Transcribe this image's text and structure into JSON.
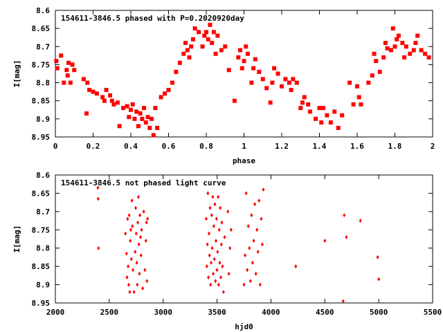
{
  "chart_data": [
    {
      "type": "scatter",
      "title": "154611-3846.5 phased with P=0.2020920day",
      "xlabel": "phase",
      "ylabel": "I[mag]",
      "xlim": [
        0,
        2
      ],
      "ylim": [
        8.95,
        8.6
      ],
      "y_inverted": true,
      "xticks": [
        "0",
        "0.2",
        "0.4",
        "0.6",
        "0.8",
        "1",
        "1.2",
        "1.4",
        "1.6",
        "1.8",
        "2"
      ],
      "yticks": [
        "8.6",
        "8.65",
        "8.7",
        "8.75",
        "8.8",
        "8.85",
        "8.9",
        "8.95"
      ],
      "marker": "square",
      "color": "#ff0000",
      "series": [
        {
          "x": [
            0.005,
            0.01,
            0.03,
            0.045,
            0.06,
            0.065,
            0.07,
            0.08,
            0.09,
            0.1,
            0.15,
            0.165,
            0.17,
            0.18,
            0.2,
            0.22,
            0.25,
            0.26,
            0.27,
            0.29,
            0.3,
            0.31,
            0.33,
            0.34,
            0.36,
            0.38,
            0.39,
            0.4,
            0.41,
            0.42,
            0.43,
            0.44,
            0.45,
            0.46,
            0.47,
            0.48,
            0.49,
            0.5,
            0.51,
            0.52,
            0.53,
            0.54,
            0.56,
            0.58,
            0.6,
            0.62,
            0.64,
            0.66,
            0.68,
            0.69,
            0.7,
            0.71,
            0.72,
            0.73,
            0.74,
            0.76,
            0.78,
            0.79,
            0.8,
            0.81,
            0.82,
            0.83,
            0.84,
            0.85,
            0.86,
            0.88,
            0.9,
            0.92,
            0.95,
            0.97,
            0.98,
            0.99,
            1.0,
            1.01,
            1.02,
            1.04,
            1.05,
            1.06,
            1.08,
            1.1,
            1.12,
            1.14,
            1.15,
            1.16,
            1.18,
            1.2,
            1.22,
            1.24,
            1.25,
            1.26,
            1.28,
            1.3,
            1.31,
            1.32,
            1.34,
            1.35,
            1.38,
            1.4,
            1.41,
            1.42,
            1.44,
            1.46,
            1.48,
            1.5,
            1.52,
            1.56,
            1.58,
            1.6,
            1.61,
            1.62,
            1.66,
            1.68,
            1.69,
            1.7,
            1.72,
            1.74,
            1.75,
            1.76,
            1.78,
            1.79,
            1.8,
            1.81,
            1.82,
            1.84,
            1.85,
            1.86,
            1.88,
            1.9,
            1.91,
            1.92,
            1.94,
            1.96,
            1.98
          ],
          "y": [
            8.74,
            8.76,
            8.725,
            8.8,
            8.765,
            8.78,
            8.745,
            8.8,
            8.75,
            8.765,
            8.79,
            8.885,
            8.8,
            8.82,
            8.825,
            8.83,
            8.84,
            8.85,
            8.82,
            8.835,
            8.85,
            8.86,
            8.855,
            8.92,
            8.87,
            8.865,
            8.895,
            8.875,
            8.86,
            8.9,
            8.88,
            8.92,
            8.885,
            8.9,
            8.87,
            8.91,
            8.895,
            8.925,
            8.9,
            8.945,
            8.87,
            8.925,
            8.84,
            8.83,
            8.82,
            8.8,
            8.77,
            8.745,
            8.72,
            8.69,
            8.71,
            8.73,
            8.7,
            8.68,
            8.65,
            8.66,
            8.7,
            8.67,
            8.66,
            8.68,
            8.64,
            8.69,
            8.66,
            8.72,
            8.67,
            8.71,
            8.7,
            8.765,
            8.85,
            8.73,
            8.71,
            8.76,
            8.74,
            8.7,
            8.72,
            8.8,
            8.76,
            8.735,
            8.77,
            8.79,
            8.815,
            8.855,
            8.8,
            8.76,
            8.775,
            8.81,
            8.79,
            8.8,
            8.82,
            8.79,
            8.8,
            8.87,
            8.855,
            8.84,
            8.86,
            8.88,
            8.9,
            8.87,
            8.91,
            8.87,
            8.89,
            8.91,
            8.88,
            8.925,
            8.89,
            8.8,
            8.86,
            8.81,
            8.84,
            8.86,
            8.8,
            8.78,
            8.72,
            8.74,
            8.77,
            8.73,
            8.69,
            8.705,
            8.71,
            8.65,
            8.7,
            8.68,
            8.67,
            8.69,
            8.73,
            8.7,
            8.72,
            8.71,
            8.69,
            8.67,
            8.71,
            8.72,
            8.73
          ]
        }
      ]
    },
    {
      "type": "scatter",
      "title": "154611-3846.5 not phased light curve",
      "xlabel": "hjd0",
      "ylabel": "I[mag]",
      "xlim": [
        2000,
        5500
      ],
      "ylim": [
        8.95,
        8.6
      ],
      "y_inverted": true,
      "xticks": [
        "2000",
        "2500",
        "3000",
        "3500",
        "4000",
        "4500",
        "5000",
        "5500"
      ],
      "yticks": [
        "8.6",
        "8.65",
        "8.7",
        "8.75",
        "8.8",
        "8.85",
        "8.9",
        "8.95"
      ],
      "marker": "diamond",
      "color": "#ff0000",
      "series": [
        {
          "x": [
            2395,
            2397,
            2400,
            2650,
            2660,
            2665,
            2670,
            2675,
            2680,
            2685,
            2690,
            2695,
            2700,
            2705,
            2710,
            2715,
            2720,
            2730,
            2740,
            2745,
            2750,
            2755,
            2760,
            2765,
            2770,
            2775,
            2780,
            2785,
            2790,
            2795,
            2800,
            2810,
            2820,
            2830,
            2840,
            2845,
            2850,
            2855,
            3400,
            3405,
            3410,
            3415,
            3420,
            3425,
            3430,
            3435,
            3440,
            3445,
            3450,
            3455,
            3460,
            3465,
            3470,
            3475,
            3480,
            3485,
            3490,
            3495,
            3500,
            3505,
            3510,
            3515,
            3520,
            3525,
            3530,
            3535,
            3540,
            3545,
            3550,
            3560,
            3570,
            3600,
            3610,
            3620,
            3630,
            3750,
            3760,
            3770,
            3780,
            3790,
            3800,
            3810,
            3820,
            3830,
            3840,
            3850,
            3860,
            3870,
            3880,
            3890,
            3900,
            3910,
            3920,
            3930,
            4230,
            4500,
            4670,
            4680,
            4700,
            4830,
            4990,
            5000
          ],
          "y": [
            8.635,
            8.665,
            8.8,
            8.76,
            8.815,
            8.88,
            8.72,
            8.85,
            8.9,
            8.71,
            8.92,
            8.78,
            8.75,
            8.83,
            8.67,
            8.74,
            8.86,
            8.92,
            8.81,
            8.69,
            8.76,
            8.84,
            8.9,
            8.73,
            8.66,
            8.79,
            8.87,
            8.71,
            8.77,
            8.82,
            8.75,
            8.91,
            8.7,
            8.86,
            8.78,
            8.73,
            8.89,
            8.72,
            8.72,
            8.85,
            8.79,
            8.65,
            8.88,
            8.76,
            8.82,
            8.69,
            8.9,
            8.84,
            8.71,
            8.8,
            8.66,
            8.87,
            8.74,
            8.83,
            8.68,
            8.89,
            8.78,
            8.72,
            8.86,
            8.81,
            8.66,
            8.9,
            8.75,
            8.84,
            8.69,
            8.88,
            8.79,
            8.73,
            8.85,
            8.92,
            8.77,
            8.7,
            8.87,
            8.8,
            8.75,
            8.9,
            8.82,
            8.65,
            8.86,
            8.74,
            8.8,
            8.89,
            8.71,
            8.84,
            8.78,
            8.68,
            8.87,
            8.75,
            8.81,
            8.67,
            8.9,
            8.72,
            8.79,
            8.64,
            8.85,
            8.78,
            8.945,
            8.71,
            8.77,
            8.725,
            8.825,
            8.885
          ]
        }
      ]
    }
  ]
}
